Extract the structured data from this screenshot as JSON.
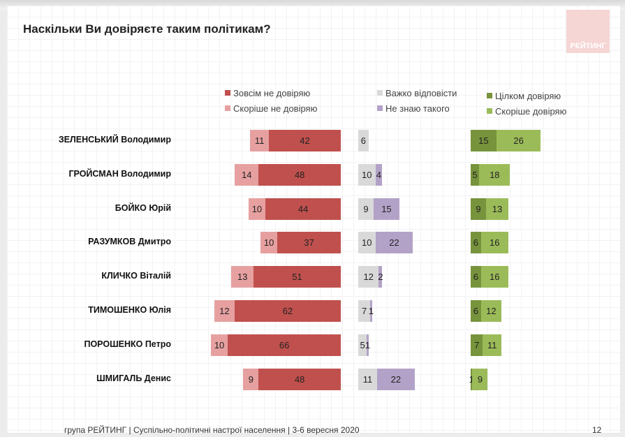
{
  "title": "Наскільки Ви довіряєте таким політикам?",
  "logo_text": "РЕЙТИНГ",
  "footer": "група РЕЙТИНГ |  Суспільно-політичні настрої населення  | 3-6 вересня  2020",
  "page_number": "12",
  "chart_data": {
    "type": "bar",
    "orientation": "horizontal-stacked",
    "categories": [
      "ЗЕЛЕНСЬКИЙ Володимир",
      "ГРОЙСМАН Володимир",
      "БОЙКО Юрій",
      "РАЗУМКОВ Дмитро",
      "КЛИЧКО Віталій",
      "ТИМОШЕНКО Юлія",
      "ПОРОШЕНКО Петро",
      "ШМИГАЛЬ Денис"
    ],
    "series": [
      {
        "name": "Зовсім не довіряю",
        "color": "#c0504d",
        "values": [
          42,
          48,
          44,
          37,
          51,
          62,
          66,
          48
        ]
      },
      {
        "name": "Скоріше не довіряю",
        "color": "#e6a0a0",
        "values": [
          11,
          14,
          10,
          10,
          13,
          12,
          10,
          9
        ]
      },
      {
        "name": "Важко відповісти",
        "color": "#d9d9d9",
        "values": [
          6,
          10,
          9,
          10,
          12,
          7,
          5,
          11
        ]
      },
      {
        "name": "Не знаю такого",
        "color": "#b3a2c7",
        "values": [
          0,
          4,
          15,
          22,
          2,
          1,
          1,
          22
        ]
      },
      {
        "name": "Цілком довіряю",
        "color": "#77933c",
        "values": [
          15,
          5,
          9,
          6,
          6,
          6,
          7,
          1
        ]
      },
      {
        "name": "Скоріше довіряю",
        "color": "#9bbb59",
        "values": [
          26,
          18,
          13,
          16,
          16,
          12,
          11,
          9
        ]
      }
    ]
  }
}
